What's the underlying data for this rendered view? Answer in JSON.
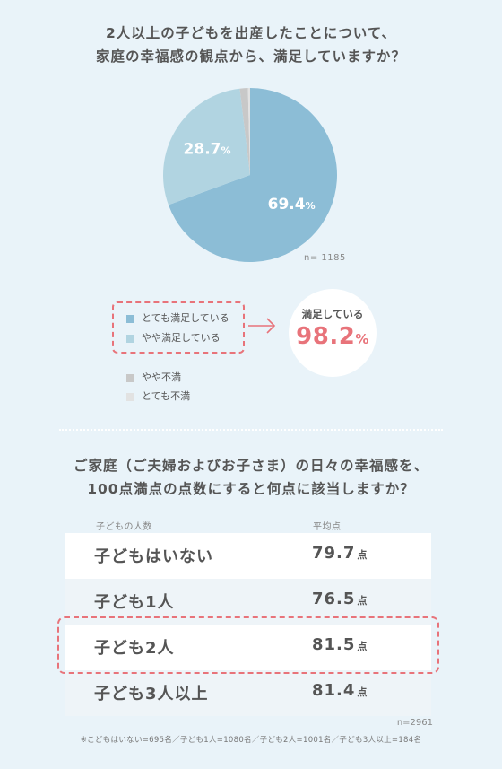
{
  "survey1": {
    "question_line1": "2人以上の子どもを出産したことについて、",
    "question_line2": "家庭の幸福感の観点から、満足していますか？",
    "n_label": "n= 1185",
    "summary_label": "満足している",
    "summary_value": "98.2",
    "summary_unit": "%"
  },
  "survey2": {
    "question_line1": "ご家庭（ご夫婦およびお子さま）の日々の幸福感を、",
    "question_line2": "100点満点の点数にすると何点に該当しますか？",
    "col_category": "子どもの人数",
    "col_value": "平均点",
    "unit": "点",
    "n_label": "n=2961",
    "footnote": "※こどもはいない=695名／子ども1人=1080名／子ども2人=1001名／子ども3人以上=184名"
  },
  "chart_data": [
    {
      "type": "pie",
      "title": "2人以上の子どもを出産したことについて、家庭の幸福感の観点から、満足していますか？",
      "series": [
        {
          "label": "とても満足している",
          "value": 69.4,
          "display": "69.4",
          "color": "#8cbdd6"
        },
        {
          "label": "やや満足している",
          "value": 28.7,
          "display": "28.7",
          "color": "#b1d4e1"
        },
        {
          "label": "やや不満",
          "value": 1.5,
          "color": "#c8c8c8"
        },
        {
          "label": "とても不満",
          "value": 0.4,
          "color": "#e2e2e2"
        }
      ],
      "value_unit": "%"
    },
    {
      "type": "table",
      "columns": [
        "子どもの人数",
        "平均点"
      ],
      "rows": [
        {
          "category": "子どもはいない",
          "value": "79.7"
        },
        {
          "category": "子ども1人",
          "value": "76.5"
        },
        {
          "category": "子ども2人",
          "value": "81.5",
          "highlight": true
        },
        {
          "category": "子ども3人以上",
          "value": "81.4"
        }
      ]
    }
  ]
}
